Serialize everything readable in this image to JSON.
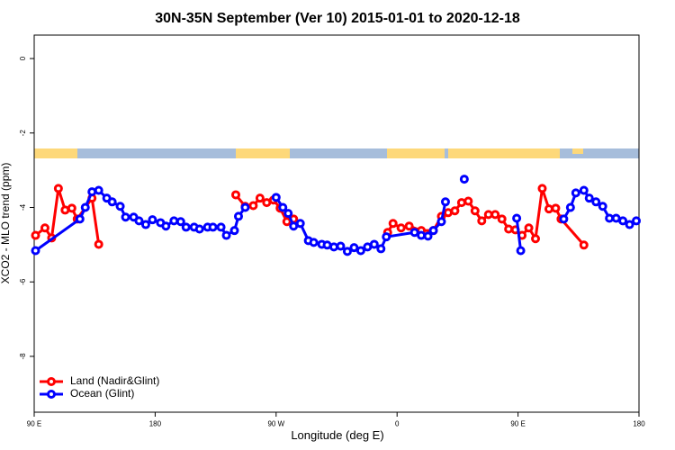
{
  "chart_data": {
    "type": "line",
    "title": "30N-35N September (Ver 10)   2015-01-01 to 2020-12-18",
    "x_label": "Longitude (deg E)",
    "y_label": "XCO2 - MLO trend (ppm)",
    "xlim": [
      90,
      540
    ],
    "xticks": [
      {
        "value": 90,
        "label": "90 E"
      },
      180,
      {
        "value": 270,
        "label": "90 W"
      },
      {
        "value": 360,
        "label": "0"
      },
      {
        "value": 450,
        "label": "90 E"
      },
      {
        "value": 540,
        "label": "180"
      }
    ],
    "ylim": [
      -9.5,
      0.63
    ],
    "yticks": [
      0,
      -2,
      -4,
      -6,
      -8
    ],
    "legend": "bottom-left",
    "series": [
      {
        "name": "Land (Nadir&Glint)",
        "color": "#ff0000",
        "x": [
          91,
          98,
          103,
          108,
          113,
          118,
          122,
          133,
          138,
          null,
          240,
          247,
          253,
          258,
          263,
          268,
          273,
          278,
          283,
          null,
          353,
          357,
          363,
          369,
          378,
          387,
          393,
          398,
          403,
          408,
          413,
          418,
          423,
          428,
          433,
          438,
          443,
          448,
          453,
          458,
          463,
          468,
          473,
          478,
          482,
          499
        ],
        "values": [
          -4.75,
          -4.55,
          -4.82,
          -3.49,
          -4.07,
          -4.02,
          -4.31,
          -3.75,
          -4.99,
          null,
          -3.66,
          -3.97,
          -3.95,
          -3.75,
          -3.87,
          -3.8,
          -4.02,
          -4.38,
          -4.31,
          null,
          -4.67,
          -4.43,
          -4.55,
          -4.5,
          -4.62,
          -4.62,
          -4.24,
          -4.14,
          -4.09,
          -3.87,
          -3.83,
          -4.09,
          -4.36,
          -4.19,
          -4.19,
          -4.31,
          -4.58,
          -4.6,
          -4.75,
          -4.55,
          -4.84,
          -3.49,
          -4.04,
          -4.02,
          -4.31,
          -5.01
        ]
      },
      {
        "name": "Ocean (Glint)",
        "color": "#0000ff",
        "x": [
          91,
          124,
          128,
          133,
          138,
          144,
          148,
          154,
          158,
          164,
          168,
          173,
          178,
          184,
          188,
          194,
          199,
          203,
          209,
          213,
          219,
          223,
          229,
          233,
          239,
          242,
          247,
          null,
          270,
          275,
          279,
          283,
          288,
          294,
          298,
          304,
          308,
          313,
          318,
          323,
          328,
          333,
          338,
          343,
          348,
          352,
          373,
          378,
          383,
          387,
          393,
          396,
          null,
          410,
          null,
          449,
          452,
          null,
          484,
          489,
          493,
          499,
          503,
          508,
          513,
          518,
          523,
          528,
          533,
          538
        ],
        "values": [
          -5.16,
          -4.31,
          -4.0,
          -3.58,
          -3.54,
          -3.75,
          -3.85,
          -3.97,
          -4.26,
          -4.26,
          -4.36,
          -4.46,
          -4.33,
          -4.41,
          -4.5,
          -4.36,
          -4.38,
          -4.53,
          -4.53,
          -4.58,
          -4.53,
          -4.53,
          -4.53,
          -4.75,
          -4.62,
          -4.24,
          -4.0,
          null,
          -3.73,
          -4.0,
          -4.16,
          -4.5,
          -4.43,
          -4.89,
          -4.94,
          -4.99,
          -5.01,
          -5.06,
          -5.04,
          -5.18,
          -5.08,
          -5.16,
          -5.06,
          -4.99,
          -5.11,
          -4.79,
          -4.67,
          -4.75,
          -4.77,
          -4.62,
          -4.38,
          -3.85,
          null,
          -3.24,
          null,
          -4.29,
          -5.16,
          null,
          -4.31,
          -4.0,
          -3.61,
          -3.54,
          -3.75,
          -3.85,
          -3.97,
          -4.29,
          -4.29,
          -4.36,
          -4.46,
          -4.36
        ]
      }
    ]
  }
}
